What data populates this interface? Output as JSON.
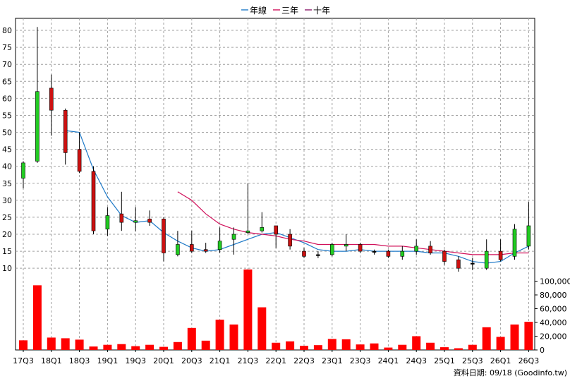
{
  "chart_data": {
    "type": "candlestick",
    "legend": [
      {
        "name": "年線",
        "color": "#1f7ac8"
      },
      {
        "name": "三年",
        "color": "#d0105a"
      },
      {
        "name": "十年",
        "color": "#8b1a6b"
      }
    ],
    "legend_position": "top-center",
    "grid": true,
    "up_color": "#22cc22",
    "down_color": "#cc1111",
    "volume_color": "#ff0000",
    "price_axis": {
      "min": 9,
      "max": 82,
      "ticks": [
        10,
        15,
        20,
        25,
        30,
        35,
        40,
        45,
        50,
        55,
        60,
        65,
        70,
        75,
        80
      ]
    },
    "volume_axis": {
      "min": 0,
      "max": 120000,
      "ticks": [
        0,
        20000,
        40000,
        60000,
        80000,
        100000
      ],
      "tick_labels": [
        "0",
        "20,000",
        "40,000",
        "60,000",
        "80,000",
        "100,000"
      ]
    },
    "x_labels": [
      {
        "i": 0,
        "label": "17Q3"
      },
      {
        "i": 2,
        "label": "18Q1"
      },
      {
        "i": 4,
        "label": "18Q3"
      },
      {
        "i": 6,
        "label": "19Q1"
      },
      {
        "i": 8,
        "label": "19Q3"
      },
      {
        "i": 10,
        "label": "20Q1"
      },
      {
        "i": 12,
        "label": "20Q3"
      },
      {
        "i": 14,
        "label": "21Q1"
      },
      {
        "i": 16,
        "label": "21Q3"
      },
      {
        "i": 18,
        "label": "22Q1"
      },
      {
        "i": 20,
        "label": "22Q3"
      },
      {
        "i": 22,
        "label": "23Q1"
      },
      {
        "i": 24,
        "label": "23Q3"
      },
      {
        "i": 26,
        "label": "24Q1"
      },
      {
        "i": 28,
        "label": "24Q3"
      },
      {
        "i": 30,
        "label": "25Q1"
      },
      {
        "i": 32,
        "label": "25Q3"
      },
      {
        "i": 34,
        "label": "26Q1"
      },
      {
        "i": 36,
        "label": "26Q3"
      }
    ],
    "candles": [
      {
        "o": 36.5,
        "c": 41,
        "h": 41.5,
        "l": 33.5,
        "v": 14000
      },
      {
        "o": 41.5,
        "c": 62,
        "h": 81,
        "l": 41,
        "v": 94000
      },
      {
        "o": 63,
        "c": 56.5,
        "h": 67,
        "l": 49,
        "v": 18000
      },
      {
        "o": 56.5,
        "c": 44,
        "h": 57,
        "l": 40.5,
        "v": 17000
      },
      {
        "o": 45,
        "c": 38.5,
        "h": 50,
        "l": 38,
        "v": 15000
      },
      {
        "o": 38.5,
        "c": 21,
        "h": 40,
        "l": 20,
        "v": 5000
      },
      {
        "o": 21.5,
        "c": 25.5,
        "h": 28,
        "l": 19.5,
        "v": 7500
      },
      {
        "o": 26,
        "c": 23.5,
        "h": 32.5,
        "l": 21,
        "v": 8500
      },
      {
        "o": 23.5,
        "c": 24,
        "h": 28,
        "l": 21,
        "v": 5500
      },
      {
        "o": 24.5,
        "c": 23.5,
        "h": 27,
        "l": 22.5,
        "v": 7500
      },
      {
        "o": 24.5,
        "c": 14.5,
        "h": 25,
        "l": 12,
        "v": 4500
      },
      {
        "o": 14,
        "c": 17,
        "h": 21,
        "l": 13.5,
        "v": 11500
      },
      {
        "o": 17,
        "c": 15,
        "h": 21,
        "l": 14.5,
        "v": 32000
      },
      {
        "o": 15.5,
        "c": 15,
        "h": 17.5,
        "l": 14.5,
        "v": 13500
      },
      {
        "o": 15.5,
        "c": 18,
        "h": 22,
        "l": 14.5,
        "v": 44000
      },
      {
        "o": 18.5,
        "c": 20,
        "h": 22,
        "l": 14,
        "v": 37000
      },
      {
        "o": 20.5,
        "c": 21,
        "h": 35,
        "l": 20,
        "v": 117000
      },
      {
        "o": 21,
        "c": 22,
        "h": 26.5,
        "l": 20.5,
        "v": 62000
      },
      {
        "o": 22.5,
        "c": 20,
        "h": 22.5,
        "l": 16,
        "v": 10500
      },
      {
        "o": 20,
        "c": 16.5,
        "h": 21.5,
        "l": 15.5,
        "v": 12500
      },
      {
        "o": 15,
        "c": 13.5,
        "h": 16,
        "l": 13,
        "v": 6000
      },
      {
        "o": 14,
        "c": 14,
        "h": 15,
        "l": 13,
        "v": 7000
      },
      {
        "o": 14,
        "c": 17,
        "h": 17.5,
        "l": 13.5,
        "v": 16000
      },
      {
        "o": 16.5,
        "c": 17,
        "h": 20,
        "l": 15,
        "v": 15500
      },
      {
        "o": 17,
        "c": 15,
        "h": 17.5,
        "l": 14.5,
        "v": 8000
      },
      {
        "o": 15,
        "c": 15,
        "h": 15.5,
        "l": 14,
        "v": 9500
      },
      {
        "o": 15,
        "c": 13.5,
        "h": 15.5,
        "l": 13,
        "v": 3500
      },
      {
        "o": 13.5,
        "c": 15,
        "h": 16.5,
        "l": 12.5,
        "v": 7500
      },
      {
        "o": 15,
        "c": 16.5,
        "h": 18.5,
        "l": 14,
        "v": 20000
      },
      {
        "o": 16.5,
        "c": 14.5,
        "h": 18,
        "l": 14,
        "v": 10500
      },
      {
        "o": 15,
        "c": 12,
        "h": 15.5,
        "l": 11,
        "v": 4000
      },
      {
        "o": 12.5,
        "c": 10,
        "h": 13.5,
        "l": 9,
        "v": 2500
      },
      {
        "o": 11.5,
        "c": 11.5,
        "h": 13,
        "l": 9.5,
        "v": 7500
      },
      {
        "o": 10,
        "c": 15,
        "h": 18.5,
        "l": 9.5,
        "v": 33000
      },
      {
        "o": 15,
        "c": 12.5,
        "h": 18.5,
        "l": 12,
        "v": 19000
      },
      {
        "o": 13.5,
        "c": 21.5,
        "h": 23,
        "l": 12.5,
        "v": 37000
      },
      {
        "o": 16.5,
        "c": 22.5,
        "h": 29.5,
        "l": 15.5,
        "v": 41000
      }
    ],
    "series": [
      {
        "name": "年線",
        "color": "#1f7ac8",
        "values": [
          null,
          null,
          null,
          50.5,
          50,
          39,
          31,
          25.5,
          23.5,
          24,
          20.5,
          18,
          16,
          15,
          15.5,
          17,
          18.5,
          20,
          20.5,
          19,
          17.5,
          15.5,
          15,
          15,
          15.5,
          15,
          15,
          15,
          15,
          14.5,
          14.5,
          13.5,
          12,
          11.5,
          12,
          14.5,
          16.5
        ]
      },
      {
        "name": "三年",
        "color": "#d0105a",
        "values": [
          null,
          null,
          null,
          null,
          null,
          null,
          null,
          null,
          null,
          null,
          null,
          32.5,
          30,
          26,
          23,
          21.5,
          20.5,
          20,
          19.5,
          18.5,
          18,
          17,
          17,
          17,
          17,
          17,
          16.5,
          16.5,
          16,
          15.5,
          15,
          14.5,
          14,
          14,
          14,
          14.5,
          14.5
        ]
      }
    ]
  },
  "footer": {
    "source_text": "資料日期: 09/18  (Goodinfo.tw)"
  }
}
